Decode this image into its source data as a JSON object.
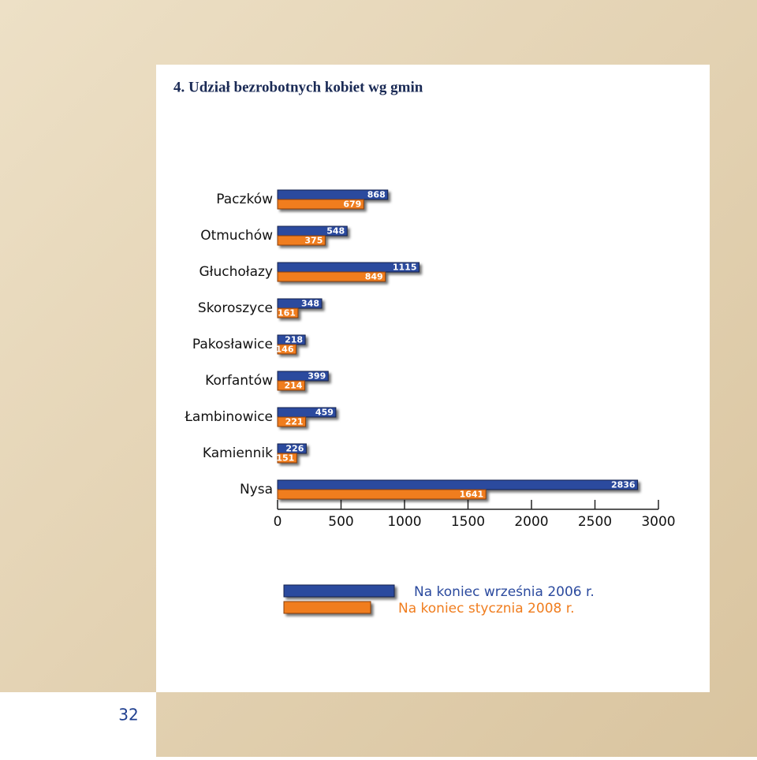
{
  "page_number": 32,
  "chart_data": {
    "type": "hbar",
    "title": "4.  Udział bezrobotnych kobiet wg gmin",
    "categories": [
      "Paczków",
      "Otmuchów",
      "Głuchołazy",
      "Skoroszyce",
      "Pakosławice",
      "Korfantów",
      "Łambinowice",
      "Kamiennik",
      "Nysa"
    ],
    "series": [
      {
        "name": "Na koniec września 2006 r.",
        "color": "#2b4a9e",
        "values": [
          868,
          548,
          1115,
          348,
          218,
          399,
          459,
          226,
          2836
        ]
      },
      {
        "name": "Na koniec stycznia 2008 r.",
        "color": "#f07d1e",
        "values": [
          679,
          375,
          849,
          161,
          146,
          214,
          221,
          151,
          1641
        ]
      }
    ],
    "xlim": [
      0,
      3000
    ],
    "xticks": [
      0,
      500,
      1000,
      1500,
      2000,
      2500,
      3000
    ]
  }
}
